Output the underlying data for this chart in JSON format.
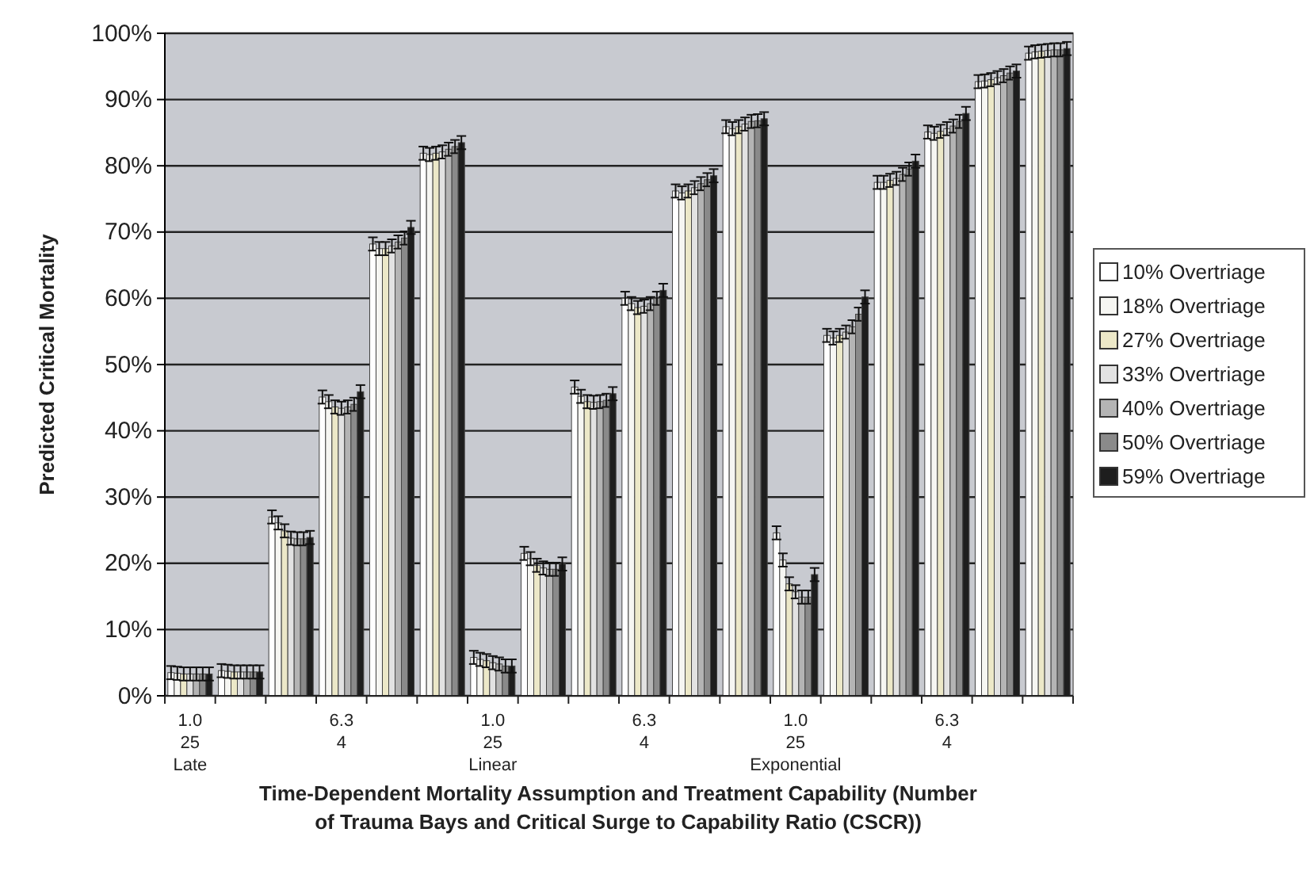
{
  "chart_data": {
    "type": "bar",
    "xlabel": "Time-Dependent Mortality Assumption and Treatment Capability (Number of Trauma Bays and Critical Surge to Capability Ratio (CSCR))",
    "ylabel": "Predicted Critical Mortality",
    "categories": [
      "1.0\n25\nLate",
      null,
      null,
      "6.3\n4",
      null,
      null,
      "1.0\n25\nLinear",
      null,
      null,
      "6.3\n4",
      null,
      null,
      "1.0\n25\nExponential",
      null,
      null,
      "6.3\n4",
      null,
      null
    ],
    "series": [
      {
        "name": "10% Overtriage",
        "color": "#ffffff",
        "values": [
          3.5,
          3.8,
          27,
          45.1,
          68.2,
          81.9,
          5.8,
          21.5,
          46.6,
          60,
          76.2,
          85.9,
          24.6,
          54.4,
          77.5,
          85.1,
          92.7,
          97
        ],
        "errors": [
          1,
          1,
          1,
          1,
          1,
          1,
          1,
          1,
          1,
          1,
          1,
          1,
          1,
          1,
          1,
          1,
          1,
          1
        ]
      },
      {
        "name": "18% Overtriage",
        "color": "#f6f6f2",
        "values": [
          3.4,
          3.7,
          26.1,
          44.4,
          67.5,
          81.7,
          5.5,
          20.7,
          45.2,
          59.2,
          75.9,
          85.6,
          20.5,
          54,
          77.5,
          84.9,
          92.8,
          97.2
        ],
        "errors": [
          1,
          1,
          1,
          1,
          1,
          1,
          1,
          1,
          1,
          1,
          1,
          1,
          1,
          1,
          1,
          1,
          1,
          1
        ]
      },
      {
        "name": "27% Overtriage",
        "color": "#ece8c8",
        "values": [
          3.3,
          3.6,
          24.9,
          43.6,
          67.5,
          81.9,
          5.3,
          19.7,
          44.4,
          58.6,
          76.2,
          85.9,
          16.9,
          54.4,
          77.8,
          85.2,
          93,
          97.3
        ],
        "errors": [
          1,
          1,
          1,
          1,
          1,
          1,
          1,
          1,
          1,
          1,
          1,
          1,
          1,
          1,
          1,
          1,
          1,
          1
        ]
      },
      {
        "name": "33% Overtriage",
        "color": "#e2e2e2",
        "values": [
          3.3,
          3.6,
          23.8,
          43.4,
          67.9,
          82.1,
          5,
          19.3,
          44.3,
          58.8,
          76.7,
          86.3,
          15.7,
          54.9,
          78.1,
          85.6,
          93.3,
          97.4
        ],
        "errors": [
          1,
          1,
          1,
          1,
          1,
          1,
          1,
          1,
          1,
          1,
          1,
          1,
          1,
          1,
          1,
          1,
          1,
          1
        ]
      },
      {
        "name": "40% Overtriage",
        "color": "#b4b4b4",
        "values": [
          3.3,
          3.6,
          23.7,
          43.6,
          68.5,
          82.5,
          4.8,
          19.1,
          44.4,
          59.2,
          77.3,
          86.7,
          14.9,
          55.7,
          78.7,
          86,
          93.6,
          97.5
        ],
        "errors": [
          1,
          1,
          1,
          1,
          1,
          1,
          1,
          1,
          1,
          1,
          1,
          1,
          1,
          1,
          1,
          1,
          1,
          1
        ]
      },
      {
        "name": "50% Overtriage",
        "color": "#8a8a8a",
        "values": [
          3.3,
          3.6,
          23.7,
          44,
          69.1,
          82.9,
          4.5,
          19.1,
          44.6,
          60,
          77.9,
          86.8,
          14.9,
          57.6,
          79.5,
          86.7,
          94,
          97.5
        ],
        "errors": [
          1,
          1,
          1,
          1,
          1,
          1,
          1,
          1,
          1,
          1,
          1,
          1,
          1,
          1,
          1,
          1,
          1,
          1
        ]
      },
      {
        "name": "59% Overtriage",
        "color": "#1e1e1e",
        "values": [
          3.3,
          3.6,
          23.9,
          45.9,
          70.7,
          83.5,
          4.5,
          19.9,
          45.6,
          61.2,
          78.5,
          87.1,
          18.3,
          60.2,
          80.7,
          87.9,
          94.3,
          97.7
        ],
        "errors": [
          1,
          1,
          1,
          1,
          1,
          1,
          1,
          1,
          1,
          1,
          1,
          1,
          1,
          1,
          1,
          1,
          1,
          1
        ]
      }
    ],
    "ylim": [
      0,
      100
    ],
    "yticks": [
      {
        "value": 0,
        "label": "0%"
      },
      {
        "value": 10,
        "label": "10%"
      },
      {
        "value": 20,
        "label": "20%"
      },
      {
        "value": 30,
        "label": "30%"
      },
      {
        "value": 40,
        "label": "40%"
      },
      {
        "value": 50,
        "label": "50%"
      },
      {
        "value": 60,
        "label": "60%"
      },
      {
        "value": 70,
        "label": "70%"
      },
      {
        "value": 80,
        "label": "80%"
      },
      {
        "value": 90,
        "label": "90%"
      },
      {
        "value": 100,
        "label": "100%"
      }
    ],
    "grid": "y",
    "legend": "right"
  }
}
